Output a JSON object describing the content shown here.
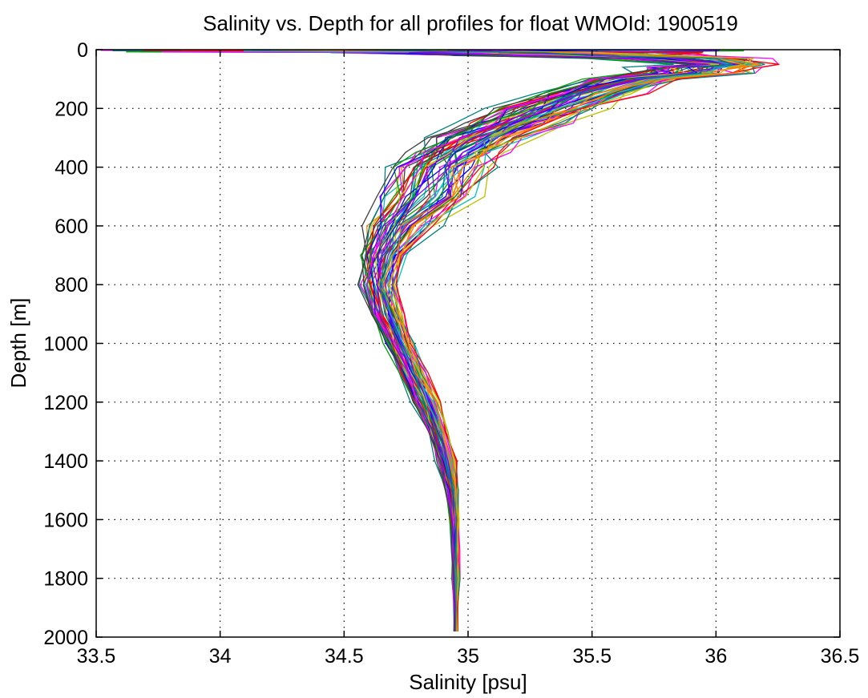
{
  "chart_data": {
    "type": "line",
    "title": "Salinity vs. Depth for all profiles for float WMOId: 1900519",
    "xlabel": "Salinity [psu]",
    "ylabel": "Depth [m]",
    "xlim": [
      33.5,
      36.5
    ],
    "ylim": [
      0,
      2000
    ],
    "y_reversed": true,
    "grid": true,
    "x_ticks": [
      33.5,
      34,
      34.5,
      35,
      35.5,
      36,
      36.5
    ],
    "x_tick_labels": [
      "33.5",
      "34",
      "34.5",
      "35",
      "35.5",
      "36",
      "36.5"
    ],
    "y_ticks": [
      0,
      200,
      400,
      600,
      800,
      1000,
      1200,
      1400,
      1600,
      1800,
      2000
    ],
    "y_tick_labels": [
      "0",
      "200",
      "400",
      "600",
      "800",
      "1000",
      "1200",
      "1400",
      "1600",
      "1800",
      "2000"
    ],
    "series_colors": [
      "#ff0000",
      "#0000ff",
      "#00a000",
      "#ff00ff",
      "#00bfbf",
      "#bfbf00",
      "#404040",
      "#ff8000",
      "#8000ff",
      "#008080"
    ],
    "profile_envelope": {
      "depth": [
        0,
        10,
        20,
        30,
        50,
        60,
        80,
        100,
        150,
        200,
        250,
        300,
        350,
        400,
        500,
        600,
        700,
        800,
        900,
        1000,
        1100,
        1200,
        1300,
        1400,
        1500,
        1600,
        1700,
        1800,
        1900,
        1980
      ],
      "salinity_min": [
        33.5,
        34.2,
        34.8,
        35.4,
        35.8,
        35.6,
        35.55,
        35.4,
        35.2,
        35.05,
        34.92,
        34.8,
        34.7,
        34.63,
        34.56,
        34.53,
        34.54,
        34.54,
        34.58,
        34.64,
        34.7,
        34.76,
        34.82,
        34.86,
        34.9,
        34.92,
        34.93,
        34.93,
        34.94,
        34.94
      ],
      "salinity_max": [
        36.2,
        36.25,
        36.1,
        36.28,
        36.28,
        36.25,
        36.2,
        35.95,
        35.75,
        35.6,
        35.45,
        35.3,
        35.2,
        35.15,
        35.1,
        34.92,
        34.78,
        34.74,
        34.76,
        34.8,
        34.85,
        34.9,
        34.93,
        34.96,
        34.97,
        34.97,
        34.97,
        34.97,
        34.96,
        34.96
      ]
    },
    "profile_count": 60
  }
}
